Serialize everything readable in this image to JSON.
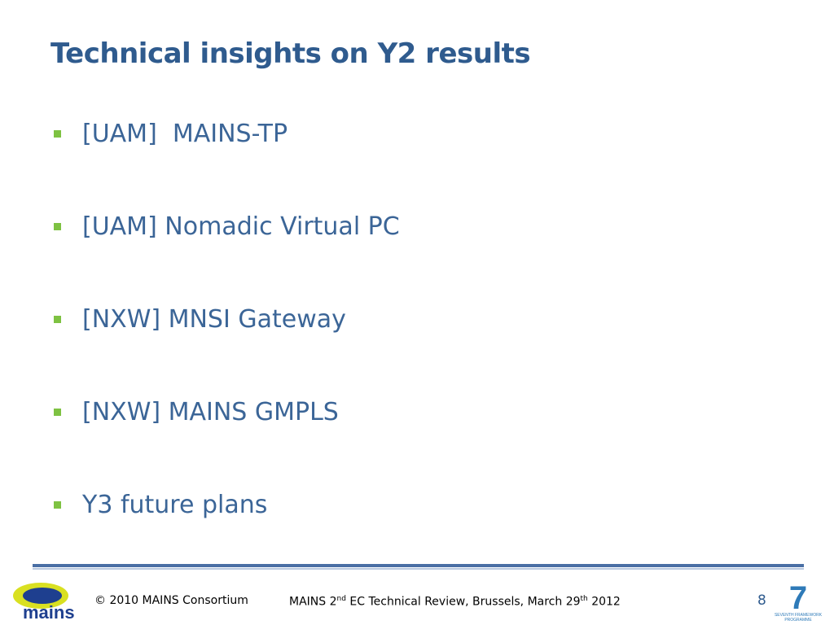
{
  "slide": {
    "title": "Technical insights on Y2 results",
    "bullets": [
      "[UAM]  MAINS-TP",
      "[UAM] Nomadic Virtual PC",
      "[NXW] MNSI Gateway",
      "[NXW] MAINS GMPLS",
      "Y3 future plans"
    ],
    "footer": {
      "copyright": "© 2010 MAINS Consortium",
      "event": [
        "MAINS 2",
        "nd",
        " EC Technical Review, Brussels, March 29",
        "th",
        " 2012"
      ],
      "page_number": "8",
      "logo_text": "mains",
      "fp7_mark": "7",
      "fp7_text": [
        "SEVENTH FRAMEWORK",
        "PROGRAMME"
      ]
    }
  }
}
